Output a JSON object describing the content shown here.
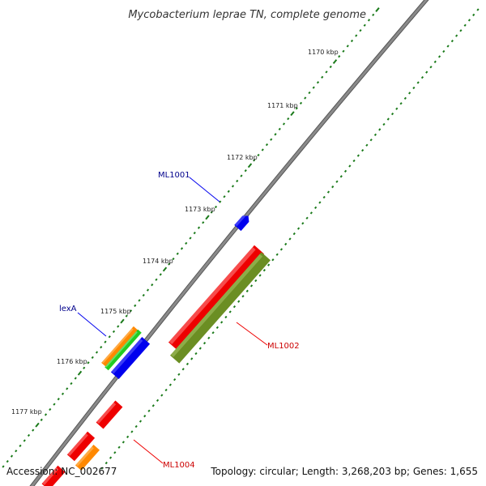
{
  "title": "Mycobacterium leprae TN, complete genome",
  "footer": {
    "accession": "Accession: NC_002677",
    "summary": "Topology: circular; Length: 3,268,203 bp; Genes: 1,655"
  },
  "colors": {
    "backbone": "#8a8a8a",
    "ticks": "#1a7a1a",
    "gene_red": "#ee0000",
    "gene_blue": "#0000ee",
    "gene_green": "#22cc22",
    "gene_orange": "#ff8800",
    "gene_olive": "#6b8e23",
    "label_blue": "#00008b",
    "label_red": "#cc0000"
  },
  "kbp_labels": [
    "1170 kbp",
    "1171 kbp",
    "1172 kbp",
    "1173 kbp",
    "1174 kbp",
    "1175 kbp",
    "1176 kbp",
    "1177 kbp"
  ],
  "gene_labels": [
    {
      "text": "ML1001",
      "color": "blue"
    },
    {
      "text": "lexA",
      "color": "blue"
    },
    {
      "text": "ML1002",
      "color": "red"
    },
    {
      "text": "ML1004",
      "color": "red"
    }
  ]
}
